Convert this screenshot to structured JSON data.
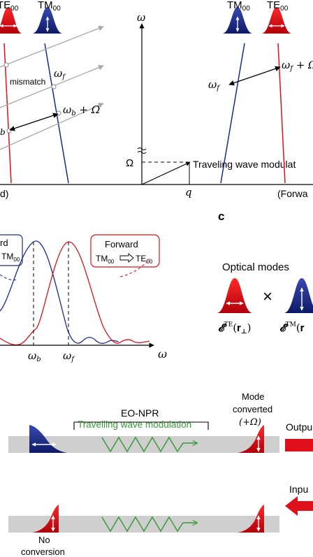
{
  "panel_a": {
    "left": {
      "mode_te": "TE",
      "mode_te_sub": "00",
      "mode_tm": "TM",
      "mode_tm_sub": "00",
      "mismatch": "mismatch",
      "omega_f": "ω",
      "omega_f_sub": "f",
      "omega_b_plus": "ω",
      "omega_b_plus_sub": "b",
      "omega_b_plus_rest": " + Ω",
      "b_label": "b",
      "direction": "d)"
    },
    "axis_omega": "ω",
    "big_omega": "Ω",
    "q_label": "q",
    "traveling_wave": "Traveling wave modulat",
    "right": {
      "mode_tm": "TM",
      "mode_tm_sub": "00",
      "mode_te": "TE",
      "mode_te_sub": "00",
      "omega_f": "ω",
      "omega_f_sub": "f",
      "omega_f_plus": "ω",
      "omega_f_plus_sub": "f",
      "omega_f_plus_rest": " + Ω",
      "direction": "(Forwa"
    }
  },
  "panel_b": {
    "backward_box_line1": "rd",
    "backward_box_line2": "TM",
    "backward_box_line2_sub": "00",
    "forward_box_line1": "Forward",
    "forward_box_tm": "TM",
    "forward_box_tm_sub": "00",
    "forward_box_te": "TE",
    "forward_box_te_sub": "00",
    "x_omega_b": "ω",
    "x_omega_b_sub": "b",
    "x_omega_f": "ω",
    "x_omega_f_sub": "f",
    "x_axis_label": "ω"
  },
  "panel_c": {
    "letter": "c",
    "title": "Optical modes",
    "times": "×",
    "e_te": "𝓔",
    "e_te_sup": "TE",
    "e_te_arg": "(𝐫",
    "e_te_arg_sub": "⊥",
    "e_te_close": ")",
    "e_tm": "𝓔",
    "e_tm_sup": "TM",
    "e_tm_arg": "(𝐫"
  },
  "panel_d": {
    "eo_npr": "EO-NPR",
    "twm": "Travelling wave modulation",
    "mode_converted_1": "Mode",
    "mode_converted_2": "converted",
    "mode_converted_3": "(+Ω)",
    "output": "Outpu",
    "input": "Inpu",
    "no_conversion_1": "No",
    "no_conversion_2": "conversion"
  },
  "colors": {
    "te_red": "#e0101a",
    "tm_blue": "#1a2a8c",
    "wave_green": "#3a9a3a",
    "waveguide_gray": "#cfcfcf",
    "arrow_gray": "#a8a8a8"
  }
}
